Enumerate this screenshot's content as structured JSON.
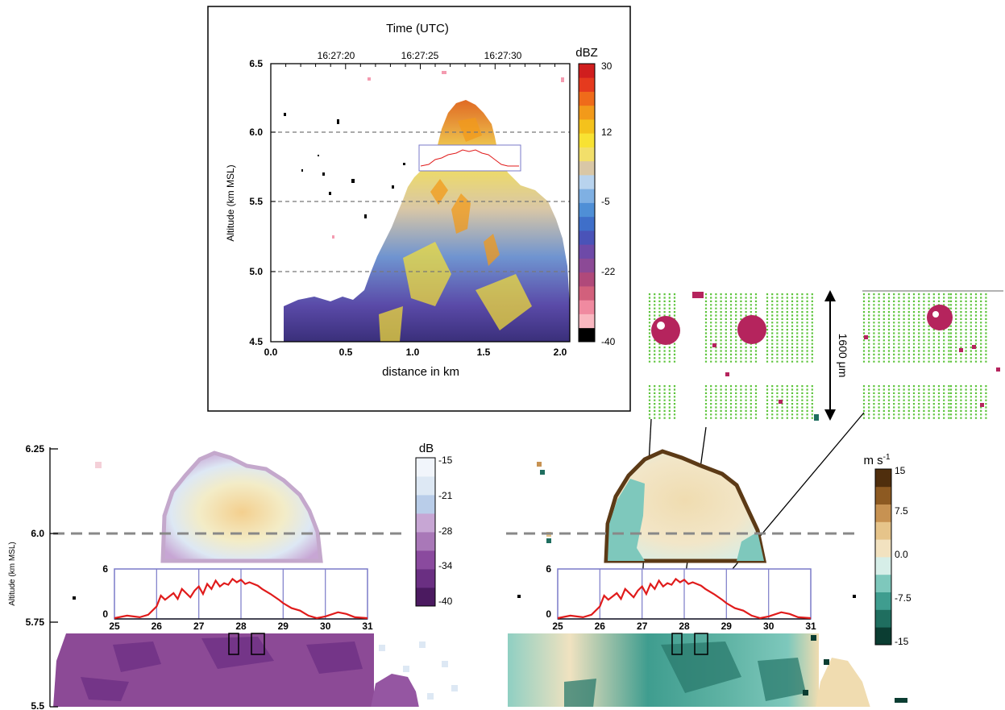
{
  "top_panel": {
    "title": "Time (UTC)",
    "time_ticks": [
      "16:27:20",
      "16:27:25",
      "16:27:30"
    ],
    "ylabel": "Altitude (km MSL)",
    "xlabel": "distance in km",
    "y_ticks": [
      "6.5",
      "6.0",
      "5.5",
      "5.0",
      "4.5"
    ],
    "x_ticks": [
      "0.0",
      "0.5",
      "1.0",
      "1.5",
      "2.0"
    ],
    "colorbar_title": "dBZ",
    "colorbar_ticks": [
      "30",
      "12",
      "-5",
      "-22",
      "-40"
    ]
  },
  "probe_panel": {
    "scale_label": "1600 μm"
  },
  "bottom_left": {
    "ylabel": "Altitude (km MSL)",
    "y_ticks": [
      "6.25",
      "6.0",
      "5.75",
      "5.5"
    ],
    "colorbar_title": "dB",
    "colorbar_ticks": [
      "-15",
      "-21",
      "-28",
      "-34",
      "-40"
    ]
  },
  "bottom_right": {
    "colorbar_title": "m s",
    "colorbar_title_sup": "-1",
    "colorbar_ticks": [
      "15",
      "7.5",
      "0.0",
      "-7.5",
      "-15"
    ]
  },
  "inset": {
    "y_ticks": [
      "6",
      "0"
    ],
    "x_ticks": [
      "25",
      "26",
      "27",
      "28",
      "29",
      "30",
      "31"
    ]
  },
  "colors": {
    "reflectivity_scale": [
      "#000000",
      "#f9b7c0",
      "#f08aa0",
      "#d2607c",
      "#b0497a",
      "#8c4a96",
      "#6e4aa8",
      "#4a53b8",
      "#3f6fc9",
      "#4f8fd6",
      "#7fb0e3",
      "#b8d3ee",
      "#d9c7a6",
      "#f2df6a",
      "#f8e233",
      "#f4c21c",
      "#f29a1a",
      "#ef6b1a",
      "#e53a1e",
      "#d01e1e"
    ],
    "ldr_scale": [
      "#4b1a60",
      "#6a2f82",
      "#8a4a9e",
      "#a978b8",
      "#c7a6d4",
      "#b9cde9",
      "#dde8f4",
      "#f1f5fb"
    ],
    "velocity_scale": [
      "#0b3d32",
      "#1f6e5f",
      "#3f9d8f",
      "#7ec8bc",
      "#d6eee8",
      "#f2e2c0",
      "#e6c48a",
      "#c79252",
      "#8d5a22",
      "#4f2e0d"
    ],
    "trace": "#e01b1b",
    "inset_frame": "#7a7ac8",
    "particle_green": "#5cc43a",
    "particle_magenta": "#b5245d"
  },
  "chart_data": [
    {
      "type": "heatmap",
      "variable": "reflectivity",
      "title": "Time (UTC)",
      "xlabel": "distance in km",
      "ylabel": "Altitude (km MSL)",
      "xlim": [
        0.0,
        2.0
      ],
      "ylim": [
        4.5,
        6.5
      ],
      "time_ticks": [
        "16:27:20",
        "16:27:25",
        "16:27:30"
      ],
      "colorbar": {
        "label": "dBZ",
        "range": [
          -40,
          30
        ],
        "ticks": [
          30,
          12,
          -5,
          -22,
          -40
        ]
      },
      "reference_lines_y": [
        6.0,
        5.5,
        5.0
      ]
    },
    {
      "type": "heatmap",
      "variable": "linear depolarization ratio",
      "ylabel": "Altitude (km MSL)",
      "ylim": [
        5.5,
        6.3
      ],
      "y_ticks": [
        6.25,
        6.0,
        5.75,
        5.5
      ],
      "colorbar": {
        "label": "dB",
        "range": [
          -40,
          -15
        ],
        "ticks": [
          -15,
          -21,
          -28,
          -34,
          -40
        ]
      },
      "reference_lines_y": [
        6.0
      ]
    },
    {
      "type": "heatmap",
      "variable": "Doppler velocity",
      "colorbar": {
        "label": "m s-1",
        "range": [
          -15,
          15
        ],
        "ticks": [
          15,
          7.5,
          0.0,
          -7.5,
          -15
        ]
      },
      "reference_lines_y": [
        6.0
      ]
    },
    {
      "type": "line",
      "xlim": [
        25,
        31
      ],
      "ylim": [
        0,
        6
      ],
      "x_ticks": [
        25,
        26,
        27,
        28,
        29,
        30,
        31
      ],
      "y_ticks": [
        0,
        6
      ],
      "x": [
        25.0,
        25.3,
        25.6,
        25.8,
        26.0,
        26.1,
        26.2,
        26.4,
        26.5,
        26.6,
        26.8,
        26.9,
        27.0,
        27.1,
        27.2,
        27.3,
        27.4,
        27.5,
        27.6,
        27.7,
        27.8,
        27.9,
        28.0,
        28.1,
        28.2,
        28.4,
        28.5,
        28.7,
        28.9,
        29.0,
        29.2,
        29.4,
        29.6,
        29.8,
        30.0,
        30.3,
        30.5,
        30.7,
        31.0
      ],
      "y": [
        0.1,
        0.4,
        0.2,
        0.5,
        1.5,
        2.8,
        2.3,
        3.1,
        2.4,
        3.6,
        2.6,
        3.4,
        3.9,
        3.0,
        4.2,
        3.6,
        4.6,
        3.9,
        4.3,
        4.1,
        4.8,
        4.4,
        4.7,
        4.2,
        4.4,
        4.0,
        3.6,
        3.0,
        2.3,
        1.9,
        1.3,
        1.0,
        0.4,
        0.1,
        0.3,
        0.8,
        0.6,
        0.2,
        0.1
      ]
    }
  ]
}
